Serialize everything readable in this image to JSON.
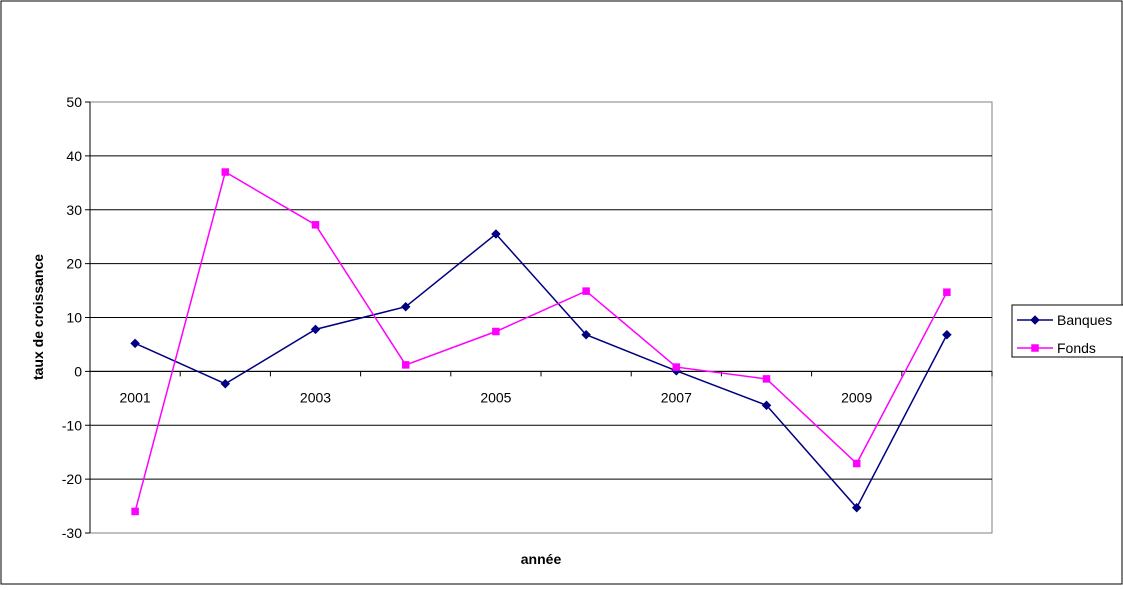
{
  "chart_data": {
    "type": "line",
    "title": "",
    "xlabel": "année",
    "ylabel": "taux de croissance",
    "x": [
      2001,
      2002,
      2003,
      2004,
      2005,
      2006,
      2007,
      2008,
      2009,
      2010
    ],
    "x_tick_labels": [
      "2001",
      "2003",
      "2005",
      "2007",
      "2009"
    ],
    "ylim": [
      -30,
      50
    ],
    "y_ticks": [
      -30,
      -20,
      -10,
      0,
      10,
      20,
      30,
      40,
      50
    ],
    "grid": true,
    "legend_position": "right",
    "series": [
      {
        "name": "Banques",
        "color": "#000080",
        "marker": "diamond",
        "values": [
          5.2,
          -2.3,
          7.8,
          12.0,
          25.5,
          6.8,
          0.1,
          -6.3,
          -25.3,
          6.8
        ]
      },
      {
        "name": "Fonds",
        "color": "#FF00FF",
        "marker": "square",
        "values": [
          -26.0,
          37.0,
          27.2,
          1.2,
          7.4,
          14.9,
          0.8,
          -1.4,
          -17.1,
          14.7
        ]
      }
    ]
  }
}
